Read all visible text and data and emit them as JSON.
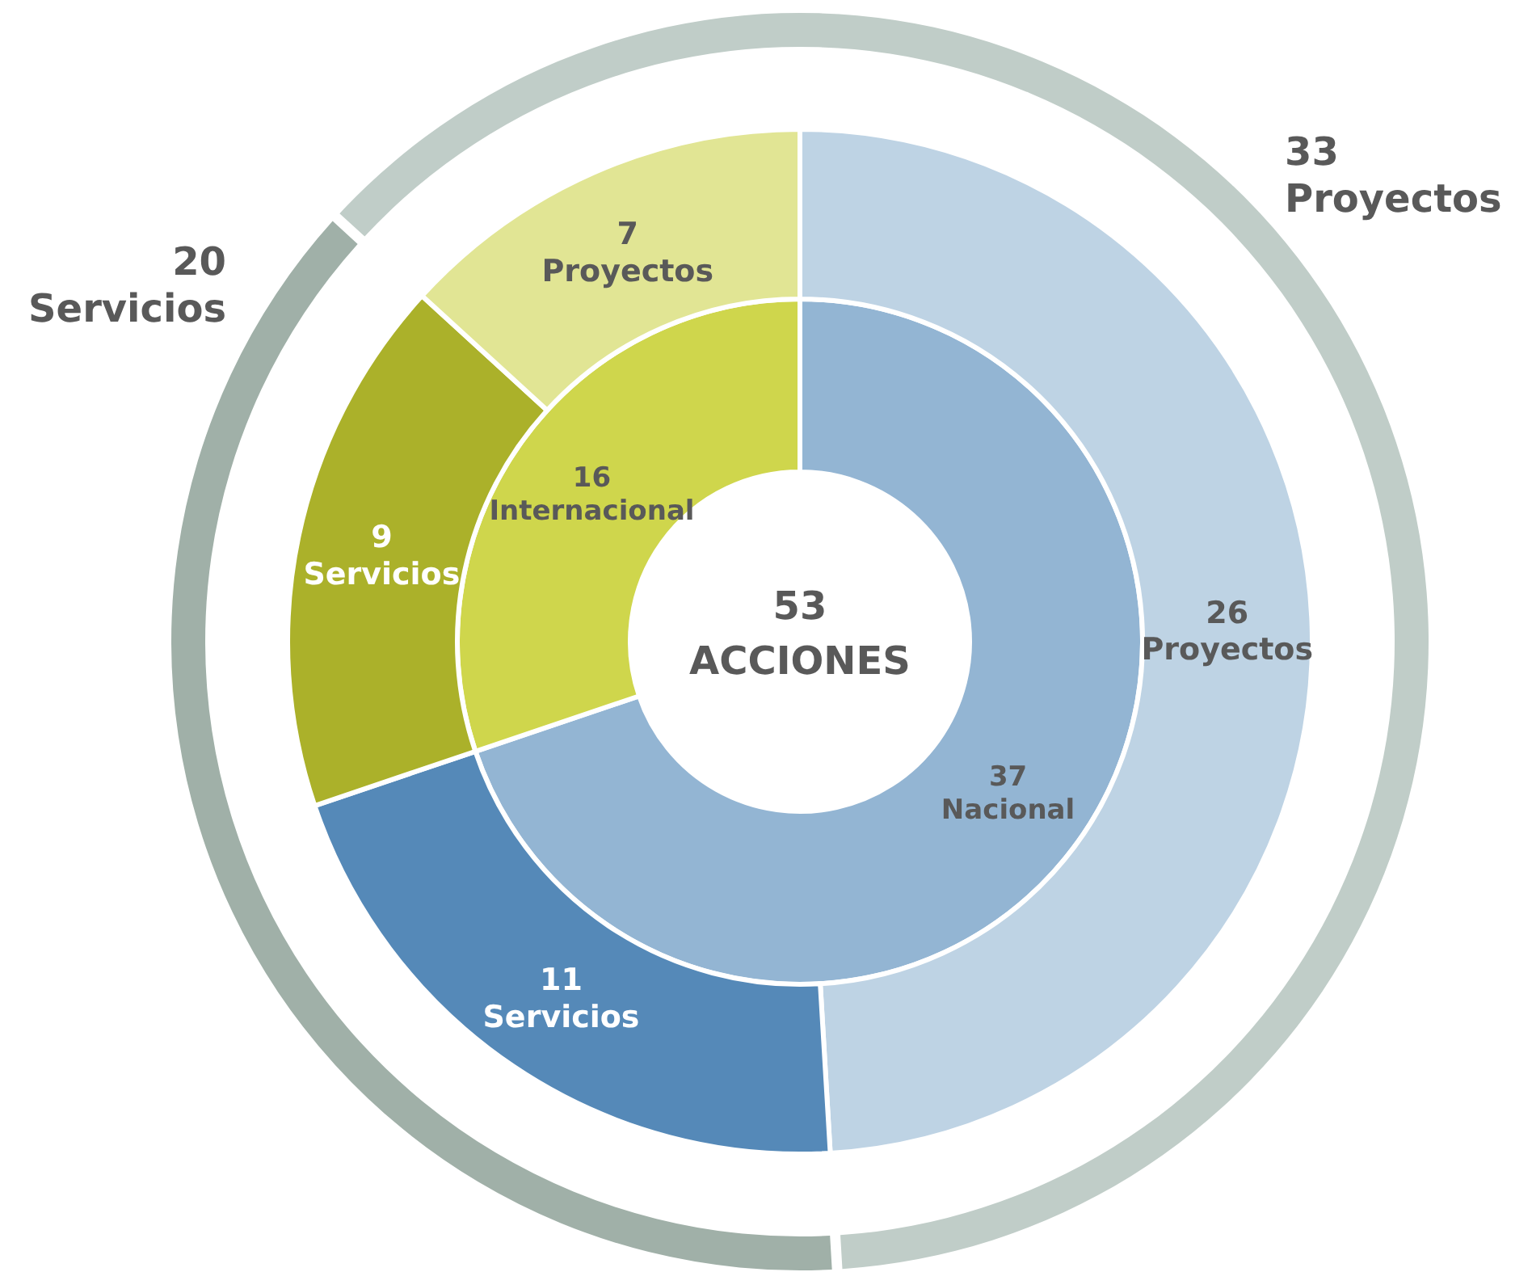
{
  "chart_data": [
    {
      "type": "donut",
      "data_labels": true,
      "annotations": [
        "53",
        "ACCIONES"
      ],
      "categories": [
        "Nacional",
        "Internacional"
      ],
      "values": [
        37,
        16
      ],
      "colors": [
        "#93b5d3",
        "#cfd64c"
      ]
    },
    {
      "type": "donut",
      "data_labels": true,
      "categories": [
        "Proyectos",
        "Servicios",
        "Servicios",
        "Proyectos"
      ],
      "values": [
        26,
        11,
        9,
        7
      ],
      "colors": [
        "#bed3e4",
        "#5589b8",
        "#abb12a",
        "#e1e594"
      ]
    },
    {
      "type": "donut",
      "data_labels": true,
      "categories": [
        "Servicios",
        "Proyectos"
      ],
      "values": [
        20,
        33
      ],
      "colors": [
        "#a0b0a8",
        "#c0cdc8"
      ]
    }
  ]
}
